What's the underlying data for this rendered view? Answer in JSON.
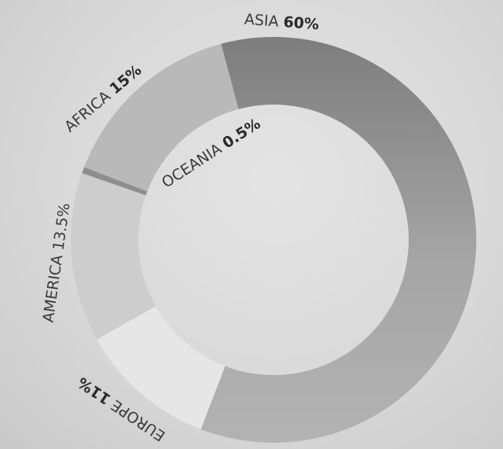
{
  "chart_data": {
    "type": "pie",
    "title": "",
    "categories": [
      "ASIA",
      "EUROPE",
      "AMERICA",
      "OCEANIA",
      "AFRICA"
    ],
    "values": [
      60,
      11,
      13.5,
      0.5,
      15
    ],
    "value_labels": [
      "60%",
      "11%",
      "13.5%",
      "0.5%",
      "15%"
    ],
    "colors": [
      "#9a9a9a",
      "#e6e6e6",
      "#cdcdcd",
      "#8e8e8e",
      "#b9b9b9"
    ],
    "legend": "none"
  }
}
